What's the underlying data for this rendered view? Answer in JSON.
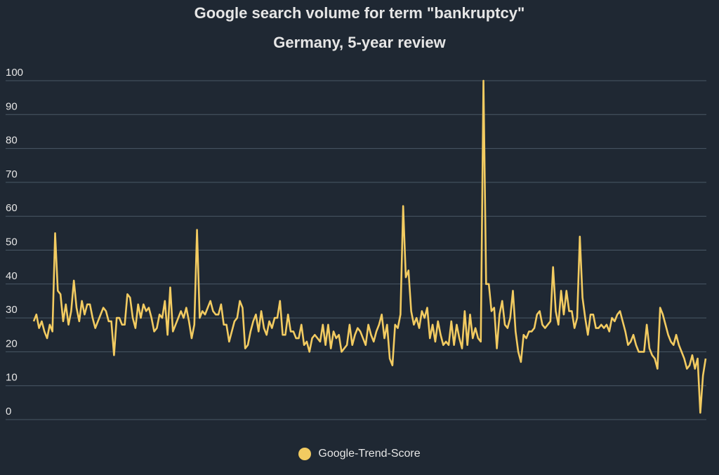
{
  "chart_data": {
    "type": "line",
    "title": "Google search volume for term \"bankruptcy\"",
    "subtitle": "Germany, 5-year review",
    "ylim": [
      0,
      100
    ],
    "y_ticks": [
      "0",
      "10",
      "20",
      "30",
      "40",
      "50",
      "60",
      "70",
      "80",
      "90",
      "100"
    ],
    "grid": true,
    "legend_position": "bottom",
    "series": [
      {
        "name": "Google-Trend-Score",
        "color": "#f2cb61",
        "values": [
          29,
          31,
          27,
          29,
          26,
          24,
          28,
          26,
          55,
          38,
          37,
          29,
          34,
          28,
          32,
          41,
          33,
          29,
          35,
          31,
          34,
          34,
          30,
          27,
          29,
          31,
          33,
          32,
          29,
          29,
          19,
          30,
          30,
          28,
          28,
          37,
          36,
          30,
          27,
          34,
          30,
          34,
          32,
          33,
          30,
          26,
          27,
          31,
          30,
          35,
          25,
          39,
          26,
          28,
          30,
          32,
          30,
          33,
          29,
          24,
          28,
          56,
          30,
          32,
          31,
          33,
          35,
          32,
          31,
          31,
          34,
          28,
          28,
          23,
          26,
          29,
          30,
          35,
          33,
          21,
          22,
          26,
          29,
          31,
          26,
          32,
          27,
          25,
          29,
          27,
          30,
          30,
          35,
          25,
          25,
          31,
          26,
          26,
          24,
          24,
          28,
          22,
          23,
          20,
          24,
          25,
          24,
          23,
          28,
          22,
          28,
          21,
          26,
          24,
          25,
          20,
          21,
          22,
          28,
          22,
          25,
          27,
          26,
          24,
          22,
          28,
          25,
          23,
          26,
          28,
          31,
          24,
          28,
          18,
          16,
          28,
          27,
          31,
          63,
          42,
          44,
          32,
          28,
          30,
          27,
          32,
          30,
          33,
          24,
          28,
          23,
          29,
          25,
          22,
          23,
          22,
          29,
          22,
          28,
          24,
          21,
          32,
          22,
          31,
          24,
          27,
          24,
          23,
          100,
          40,
          40,
          32,
          33,
          21,
          31,
          35,
          28,
          27,
          30,
          38,
          26,
          20,
          17,
          25,
          24,
          26,
          26,
          27,
          31,
          32,
          28,
          27,
          28,
          29,
          45,
          32,
          28,
          38,
          31,
          38,
          32,
          32,
          27,
          30,
          54,
          36,
          30,
          25,
          31,
          31,
          27,
          27,
          28,
          27,
          28,
          26,
          30,
          29,
          31,
          32,
          29,
          26,
          22,
          23,
          25,
          22,
          20,
          20,
          20,
          28,
          21,
          19,
          18,
          15,
          33,
          31,
          28,
          25,
          23,
          22,
          25,
          22,
          20,
          18,
          15,
          16,
          19,
          15,
          18,
          2,
          13,
          18
        ]
      }
    ]
  }
}
